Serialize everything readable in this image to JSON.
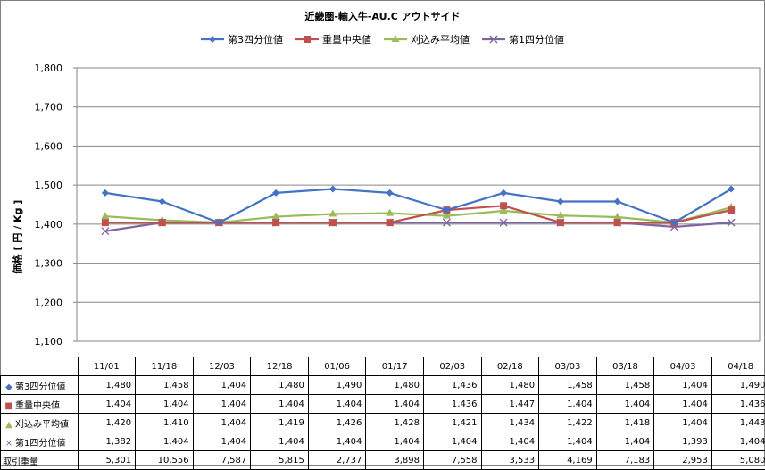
{
  "chart_data": {
    "type": "line",
    "title": "近畿圏-輸入牛-AU.C アウトサイド",
    "ylabel": "価格 [ 円 / Kg ]",
    "xlabel": "",
    "ylim": [
      1100,
      1800
    ],
    "yticks": [
      "1,100",
      "1,200",
      "1,300",
      "1,400",
      "1,500",
      "1,600",
      "1,700",
      "1,800"
    ],
    "categories": [
      "11/01",
      "11/18",
      "12/03",
      "12/18",
      "01/06",
      "01/17",
      "02/03",
      "02/18",
      "03/03",
      "03/18",
      "04/03",
      "04/18"
    ],
    "legend_position": "top",
    "grid": true,
    "series": [
      {
        "name": "第3四分位値",
        "color": "#4472c4",
        "marker": "diamond",
        "values": [
          1480,
          1458,
          1404,
          1480,
          1490,
          1480,
          1436,
          1480,
          1458,
          1458,
          1404,
          1490
        ]
      },
      {
        "name": "重量中央値",
        "color": "#c0504d",
        "marker": "square",
        "values": [
          1404,
          1404,
          1404,
          1404,
          1404,
          1404,
          1436,
          1447,
          1404,
          1404,
          1404,
          1436
        ]
      },
      {
        "name": "刈込み平均値",
        "color": "#9bbb59",
        "marker": "triangle",
        "values": [
          1420,
          1410,
          1404,
          1419,
          1426,
          1428,
          1421,
          1434,
          1422,
          1418,
          1404,
          1443
        ]
      },
      {
        "name": "第1四分位値",
        "color": "#8064a2",
        "marker": "x",
        "values": [
          1382,
          1404,
          1404,
          1404,
          1404,
          1404,
          1404,
          1404,
          1404,
          1404,
          1393,
          1404
        ]
      }
    ],
    "table": {
      "rows": [
        {
          "label": "第3四分位値",
          "values": [
            "1,480",
            "1,458",
            "1,404",
            "1,480",
            "1,490",
            "1,480",
            "1,436",
            "1,480",
            "1,458",
            "1,458",
            "1,404",
            "1,490"
          ]
        },
        {
          "label": "重量中央値",
          "values": [
            "1,404",
            "1,404",
            "1,404",
            "1,404",
            "1,404",
            "1,404",
            "1,436",
            "1,447",
            "1,404",
            "1,404",
            "1,404",
            "1,436"
          ]
        },
        {
          "label": "刈込み平均値",
          "values": [
            "1,420",
            "1,410",
            "1,404",
            "1,419",
            "1,426",
            "1,428",
            "1,421",
            "1,434",
            "1,422",
            "1,418",
            "1,404",
            "1,443"
          ]
        },
        {
          "label": "第1四分位値",
          "values": [
            "1,382",
            "1,404",
            "1,404",
            "1,404",
            "1,404",
            "1,404",
            "1,404",
            "1,404",
            "1,404",
            "1,404",
            "1,393",
            "1,404"
          ]
        },
        {
          "label": "取引重量",
          "values": [
            "5,301",
            "10,556",
            "7,587",
            "5,815",
            "2,737",
            "3,898",
            "7,558",
            "3,533",
            "4,169",
            "7,183",
            "2,953",
            "5,080"
          ]
        }
      ]
    }
  }
}
